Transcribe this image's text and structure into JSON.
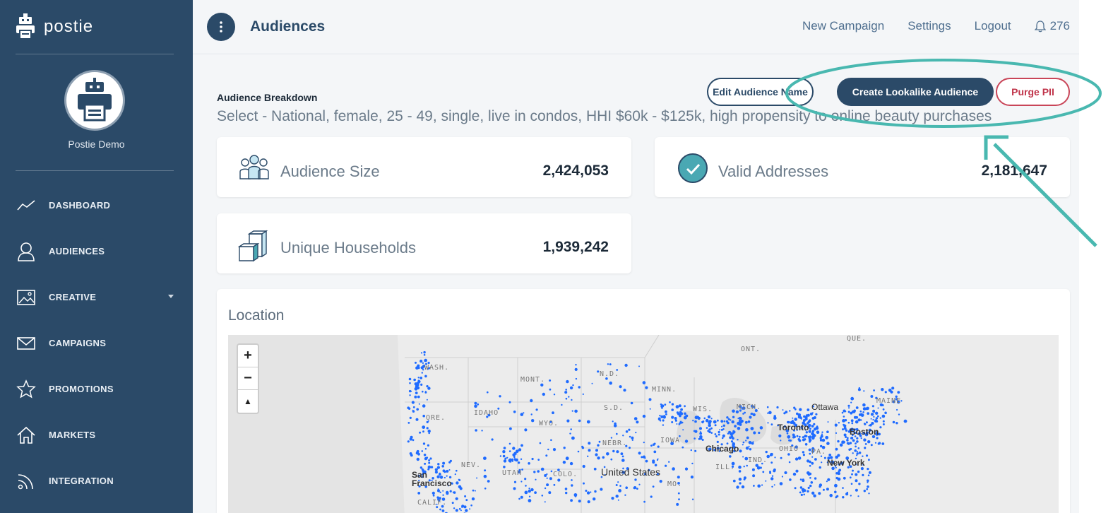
{
  "sidebar": {
    "brand": "postie",
    "user_name": "Postie Demo",
    "items": [
      {
        "label": "DASHBOARD",
        "icon": "trend-line-icon"
      },
      {
        "label": "AUDIENCES",
        "icon": "user-icon"
      },
      {
        "label": "CREATIVE",
        "icon": "image-icon"
      },
      {
        "label": "CAMPAIGNS",
        "icon": "envelope-icon"
      },
      {
        "label": "PROMOTIONS",
        "icon": "star-icon"
      },
      {
        "label": "MARKETS",
        "icon": "home-icon"
      },
      {
        "label": "INTEGRATION",
        "icon": "rss-icon"
      }
    ]
  },
  "topbar": {
    "title": "Audiences",
    "links": [
      "New Campaign",
      "Settings",
      "Logout"
    ],
    "notifications": "276"
  },
  "breakdown": {
    "label": "Audience Breakdown",
    "description": "Select - National, female, 25 - 49, single, live in condos, HHI $60k - $125k, high propensity to online beauty purchases"
  },
  "actions": {
    "edit": "Edit Audience Name",
    "lookalike": "Create Lookalike Audience",
    "purge": "Purge PII"
  },
  "stats": {
    "audience_size": {
      "label": "Audience Size",
      "value": "2,424,053"
    },
    "valid_addresses": {
      "label": "Valid Addresses",
      "value": "2,181,647"
    },
    "unique_households": {
      "label": "Unique Households",
      "value": "1,939,242"
    }
  },
  "location": {
    "title": "Location",
    "zoom_in": "+",
    "zoom_out": "−",
    "reset": "▲",
    "labels": {
      "wash": "WASH.",
      "mont": "MONT.",
      "nd": "N.D.",
      "minn": "MINN.",
      "ont": "ONT.",
      "que": "QUE.",
      "idaho": "IDAHO",
      "ore": "ORE.",
      "wyo": "WYO.",
      "sd": "S.D.",
      "wis": "WIS.",
      "mich": "MICH.",
      "nebr": "NEBR.",
      "iowa": "IOWA",
      "nev": "NEV.",
      "utah": "UTAH",
      "colo": "COLO.",
      "maine": "MAINE",
      "calif": "CALIF.",
      "ill": "ILL.",
      "ind": "IND.",
      "ohio": "OHIO",
      "pa": "PA.",
      "mo": "MO."
    },
    "cities": {
      "ottawa": "Ottawa",
      "toronto": "Toronto",
      "boston": "Boston",
      "chicago": "Chicago",
      "new_york": "New York",
      "united_states": "United States",
      "san_francisco": "San Francisco"
    }
  }
}
